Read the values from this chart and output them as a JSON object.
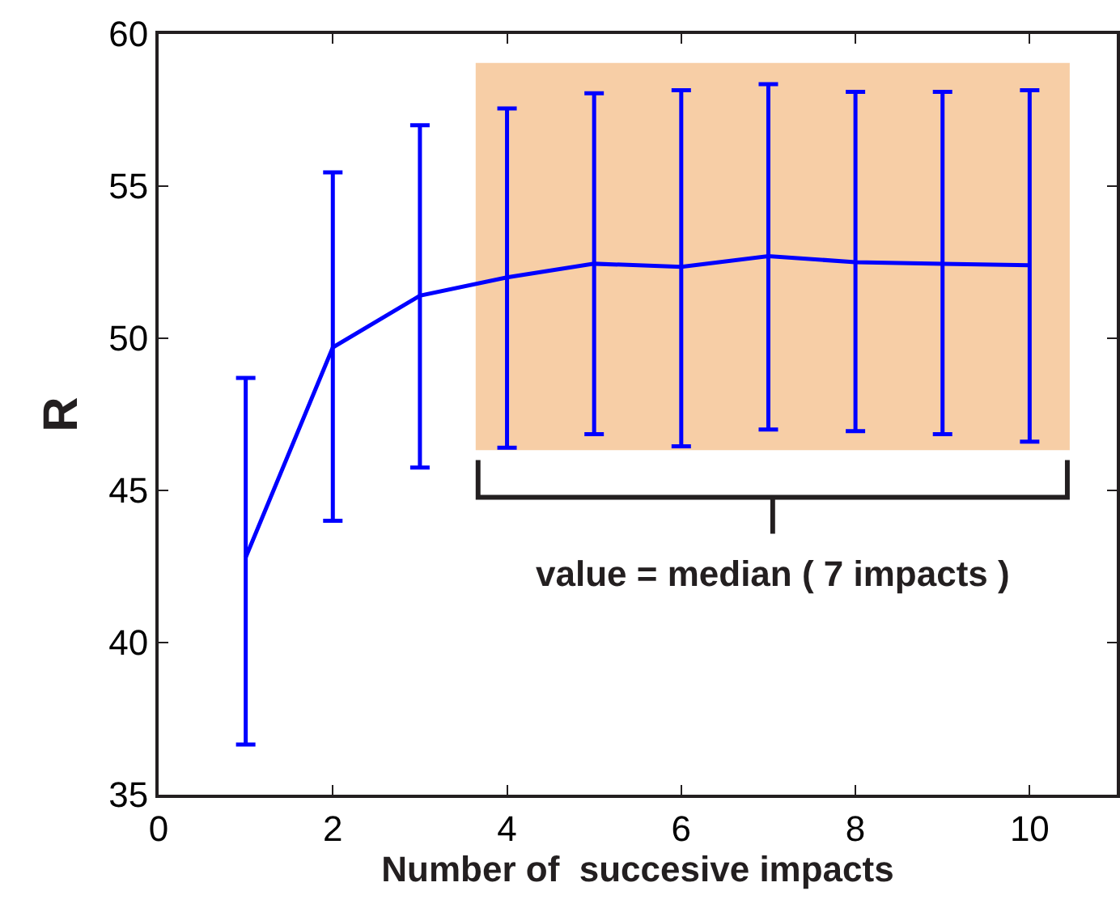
{
  "chart_data": {
    "type": "line",
    "xlabel": "Number of  succesive impacts",
    "ylabel": "R",
    "x": [
      1,
      2,
      3,
      4,
      5,
      6,
      7,
      8,
      9,
      10
    ],
    "series": [
      {
        "color": "#0000ff",
        "values": [
          42.8,
          49.7,
          51.4,
          52.0,
          52.45,
          52.35,
          52.7,
          52.5,
          52.45,
          52.4
        ],
        "errors": [
          [
            36.65,
            48.7
          ],
          [
            44.0,
            55.45
          ],
          [
            45.75,
            57.0
          ],
          [
            46.4,
            57.55
          ],
          [
            46.85,
            58.05
          ],
          [
            46.45,
            58.15
          ],
          [
            47.0,
            58.35
          ],
          [
            46.95,
            58.1
          ],
          [
            46.85,
            58.1
          ],
          [
            46.6,
            58.15
          ]
        ]
      }
    ],
    "xlim": [
      0,
      11
    ],
    "xticks": [
      0,
      2,
      4,
      6,
      8,
      10
    ],
    "ylim": [
      35,
      60
    ],
    "yticks": [
      35,
      40,
      45,
      50,
      55,
      60
    ],
    "bands": [
      {
        "axis": "x",
        "from": 3.64,
        "to": 10.46,
        "label": "value = median ( 7 impacts )",
        "color": "#f7cea6"
      }
    ],
    "grid": false,
    "marker": "none",
    "line_style": "solid"
  }
}
